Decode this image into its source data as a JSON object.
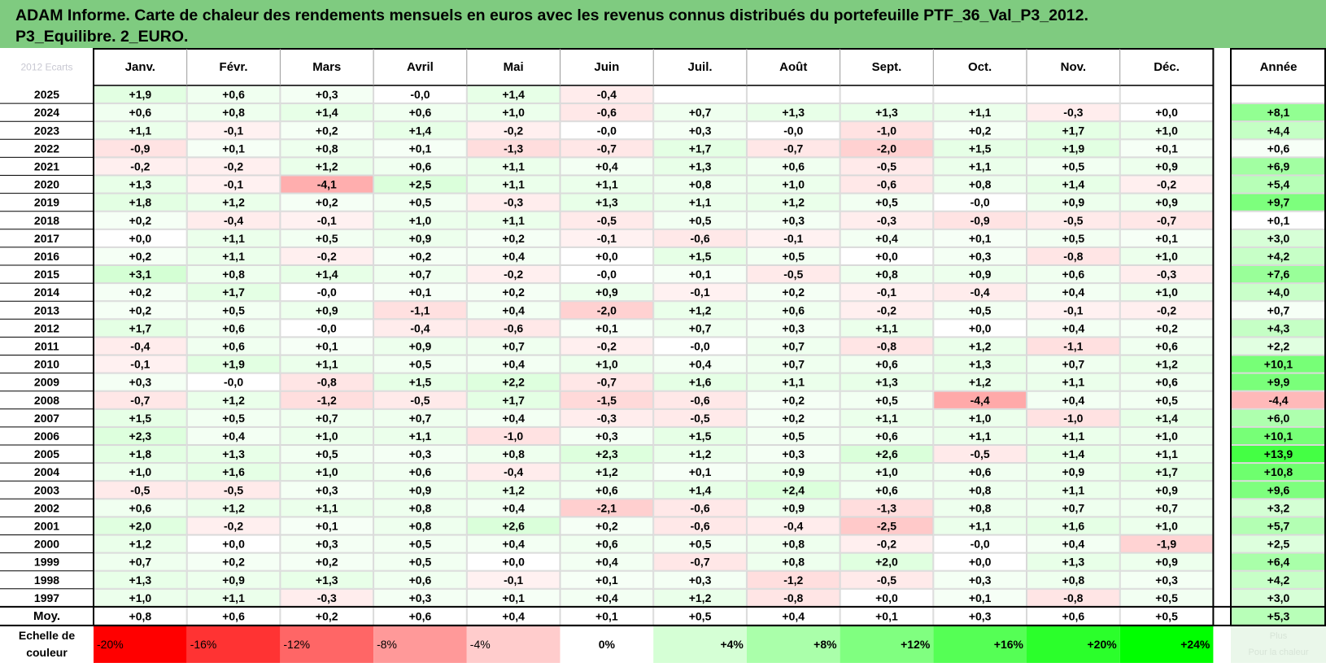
{
  "title": {
    "line1": "ADAM Informe. Carte de chaleur des rendements mensuels en euros avec les revenus connus distribués du portefeuille PTF_36_Val_P3_2012.",
    "line2": "P3_Equilibre. 2_EURO."
  },
  "colors": {
    "title_bg": "#7fcb80",
    "positive": "#00ff00",
    "negative": "#ff0000"
  },
  "chart_data": {
    "type": "heatmap",
    "corner_label": "2012 Ecarts",
    "columns": [
      "Janv.",
      "Févr.",
      "Mars",
      "Avril",
      "Mai",
      "Juin",
      "Juil.",
      "Août",
      "Sept.",
      "Oct.",
      "Nov.",
      "Déc."
    ],
    "year_header": "Année",
    "rows": [
      {
        "label": "2025",
        "values": [
          "+1,9",
          "+0,6",
          "+0,3",
          "-0,0",
          "+1,4",
          "-0,4",
          "",
          "",
          "",
          "",
          "",
          ""
        ],
        "year": ""
      },
      {
        "label": "2024",
        "values": [
          "+0,6",
          "+0,8",
          "+1,4",
          "+0,6",
          "+1,0",
          "-0,6",
          "+0,7",
          "+1,3",
          "+1,3",
          "+1,1",
          "-0,3",
          "+0,0"
        ],
        "year": "+8,1"
      },
      {
        "label": "2023",
        "values": [
          "+1,1",
          "-0,1",
          "+0,2",
          "+1,4",
          "-0,2",
          "-0,0",
          "+0,3",
          "-0,0",
          "-1,0",
          "+0,2",
          "+1,7",
          "+1,0"
        ],
        "year": "+4,4"
      },
      {
        "label": "2022",
        "values": [
          "-0,9",
          "+0,1",
          "+0,8",
          "+0,1",
          "-1,3",
          "-0,7",
          "+1,7",
          "-0,7",
          "-2,0",
          "+1,5",
          "+1,9",
          "+0,1"
        ],
        "year": "+0,6"
      },
      {
        "label": "2021",
        "values": [
          "-0,2",
          "-0,2",
          "+1,2",
          "+0,6",
          "+1,1",
          "+0,4",
          "+1,3",
          "+0,6",
          "-0,5",
          "+1,1",
          "+0,5",
          "+0,9"
        ],
        "year": "+6,9"
      },
      {
        "label": "2020",
        "values": [
          "+1,3",
          "-0,1",
          "-4,1",
          "+2,5",
          "+1,1",
          "+1,1",
          "+0,8",
          "+1,0",
          "-0,6",
          "+0,8",
          "+1,4",
          "-0,2"
        ],
        "year": "+5,4"
      },
      {
        "label": "2019",
        "values": [
          "+1,8",
          "+1,2",
          "+0,2",
          "+0,5",
          "-0,3",
          "+1,3",
          "+1,1",
          "+1,2",
          "+0,5",
          "-0,0",
          "+0,9",
          "+0,9"
        ],
        "year": "+9,7"
      },
      {
        "label": "2018",
        "values": [
          "+0,2",
          "-0,4",
          "-0,1",
          "+1,0",
          "+1,1",
          "-0,5",
          "+0,5",
          "+0,3",
          "-0,3",
          "-0,9",
          "-0,5",
          "-0,7"
        ],
        "year": "+0,1"
      },
      {
        "label": "2017",
        "values": [
          "+0,0",
          "+1,1",
          "+0,5",
          "+0,9",
          "+0,2",
          "-0,1",
          "-0,6",
          "-0,1",
          "+0,4",
          "+0,1",
          "+0,5",
          "+0,1"
        ],
        "year": "+3,0"
      },
      {
        "label": "2016",
        "values": [
          "+0,2",
          "+1,1",
          "-0,2",
          "+0,2",
          "+0,4",
          "+0,0",
          "+1,5",
          "+0,5",
          "+0,0",
          "+0,3",
          "-0,8",
          "+1,0"
        ],
        "year": "+4,2"
      },
      {
        "label": "2015",
        "values": [
          "+3,1",
          "+0,8",
          "+1,4",
          "+0,7",
          "-0,2",
          "-0,0",
          "+0,1",
          "-0,5",
          "+0,8",
          "+0,9",
          "+0,6",
          "-0,3"
        ],
        "year": "+7,6"
      },
      {
        "label": "2014",
        "values": [
          "+0,2",
          "+1,7",
          "-0,0",
          "+0,1",
          "+0,2",
          "+0,9",
          "-0,1",
          "+0,2",
          "-0,1",
          "-0,4",
          "+0,4",
          "+1,0"
        ],
        "year": "+4,0"
      },
      {
        "label": "2013",
        "values": [
          "+0,2",
          "+0,5",
          "+0,9",
          "-1,1",
          "+0,4",
          "-2,0",
          "+1,2",
          "+0,6",
          "-0,2",
          "+0,5",
          "-0,1",
          "-0,2"
        ],
        "year": "+0,7"
      },
      {
        "label": "2012",
        "values": [
          "+1,7",
          "+0,6",
          "-0,0",
          "-0,4",
          "-0,6",
          "+0,1",
          "+0,7",
          "+0,3",
          "+1,1",
          "+0,0",
          "+0,4",
          "+0,2"
        ],
        "year": "+4,3"
      },
      {
        "label": "2011",
        "values": [
          "-0,4",
          "+0,6",
          "+0,1",
          "+0,9",
          "+0,7",
          "-0,2",
          "-0,0",
          "+0,7",
          "-0,8",
          "+1,2",
          "-1,1",
          "+0,6"
        ],
        "year": "+2,2"
      },
      {
        "label": "2010",
        "values": [
          "-0,1",
          "+1,9",
          "+1,1",
          "+0,5",
          "+0,4",
          "+1,0",
          "+0,4",
          "+0,7",
          "+0,6",
          "+1,3",
          "+0,7",
          "+1,2"
        ],
        "year": "+10,1"
      },
      {
        "label": "2009",
        "values": [
          "+0,3",
          "-0,0",
          "-0,8",
          "+1,5",
          "+2,2",
          "-0,7",
          "+1,6",
          "+1,1",
          "+1,3",
          "+1,2",
          "+1,1",
          "+0,6"
        ],
        "year": "+9,9"
      },
      {
        "label": "2008",
        "values": [
          "-0,7",
          "+1,2",
          "-1,2",
          "-0,5",
          "+1,7",
          "-1,5",
          "-0,6",
          "+0,2",
          "+0,5",
          "-4,4",
          "+0,4",
          "+0,5"
        ],
        "year": "-4,4"
      },
      {
        "label": "2007",
        "values": [
          "+1,5",
          "+0,5",
          "+0,7",
          "+0,7",
          "+0,4",
          "-0,3",
          "-0,5",
          "+0,2",
          "+1,1",
          "+1,0",
          "-1,0",
          "+1,4"
        ],
        "year": "+6,0"
      },
      {
        "label": "2006",
        "values": [
          "+2,3",
          "+0,4",
          "+1,0",
          "+1,1",
          "-1,0",
          "+0,3",
          "+1,5",
          "+0,5",
          "+0,6",
          "+1,1",
          "+1,1",
          "+1,0"
        ],
        "year": "+10,1"
      },
      {
        "label": "2005",
        "values": [
          "+1,8",
          "+1,3",
          "+0,5",
          "+0,3",
          "+0,8",
          "+2,3",
          "+1,2",
          "+0,3",
          "+2,6",
          "-0,5",
          "+1,4",
          "+1,1"
        ],
        "year": "+13,9"
      },
      {
        "label": "2004",
        "values": [
          "+1,0",
          "+1,6",
          "+1,0",
          "+0,6",
          "-0,4",
          "+1,2",
          "+0,1",
          "+0,9",
          "+1,0",
          "+0,6",
          "+0,9",
          "+1,7"
        ],
        "year": "+10,8"
      },
      {
        "label": "2003",
        "values": [
          "-0,5",
          "-0,5",
          "+0,3",
          "+0,9",
          "+1,2",
          "+0,6",
          "+1,4",
          "+2,4",
          "+0,6",
          "+0,8",
          "+1,1",
          "+0,9"
        ],
        "year": "+9,6"
      },
      {
        "label": "2002",
        "values": [
          "+0,6",
          "+1,2",
          "+1,1",
          "+0,8",
          "+0,4",
          "-2,1",
          "-0,6",
          "+0,9",
          "-1,3",
          "+0,8",
          "+0,7",
          "+0,7"
        ],
        "year": "+3,2"
      },
      {
        "label": "2001",
        "values": [
          "+2,0",
          "-0,2",
          "+0,1",
          "+0,8",
          "+2,6",
          "+0,2",
          "-0,6",
          "-0,4",
          "-2,5",
          "+1,1",
          "+1,6",
          "+1,0"
        ],
        "year": "+5,7"
      },
      {
        "label": "2000",
        "values": [
          "+1,2",
          "+0,0",
          "+0,3",
          "+0,5",
          "+0,4",
          "+0,6",
          "+0,5",
          "+0,8",
          "-0,2",
          "-0,0",
          "+0,4",
          "-1,9"
        ],
        "year": "+2,5"
      },
      {
        "label": "1999",
        "values": [
          "+0,7",
          "+0,2",
          "+0,2",
          "+0,5",
          "+0,0",
          "+0,4",
          "-0,7",
          "+0,8",
          "+2,0",
          "+0,0",
          "+1,3",
          "+0,9"
        ],
        "year": "+6,4"
      },
      {
        "label": "1998",
        "values": [
          "+1,3",
          "+0,9",
          "+1,3",
          "+0,6",
          "-0,1",
          "+0,1",
          "+0,3",
          "-1,2",
          "-0,5",
          "+0,3",
          "+0,8",
          "+0,3"
        ],
        "year": "+4,2"
      },
      {
        "label": "1997",
        "values": [
          "+1,0",
          "+1,1",
          "-0,3",
          "+0,3",
          "+0,1",
          "+0,4",
          "+1,2",
          "-0,8",
          "+0,0",
          "+0,1",
          "-0,8",
          "+0,5"
        ],
        "year": "+3,0"
      }
    ],
    "average": {
      "label": "Moy.",
      "values": [
        "+0,8",
        "+0,6",
        "+0,2",
        "+0,6",
        "+0,4",
        "+0,1",
        "+0,5",
        "+0,4",
        "+0,1",
        "+0,3",
        "+0,6",
        "+0,5"
      ],
      "year": "+5,3"
    },
    "scale": {
      "label_line1": "Echelle de",
      "label_line2": "couleur",
      "steps": [
        {
          "label": "-20%",
          "value": -20
        },
        {
          "label": "-16%",
          "value": -16
        },
        {
          "label": "-12%",
          "value": -12
        },
        {
          "label": "-8%",
          "value": -8
        },
        {
          "label": "-4%",
          "value": -4
        },
        {
          "label": "0%",
          "value": 0
        },
        {
          "label": "+4%",
          "value": 4
        },
        {
          "label": "+8%",
          "value": 8
        },
        {
          "label": "+12%",
          "value": 12
        },
        {
          "label": "+16%",
          "value": 16
        },
        {
          "label": "+20%",
          "value": 20
        },
        {
          "label": "+24%",
          "value": 24
        }
      ],
      "faded_line1": "Plus",
      "faded_line2": "Pour la chaleur"
    }
  }
}
